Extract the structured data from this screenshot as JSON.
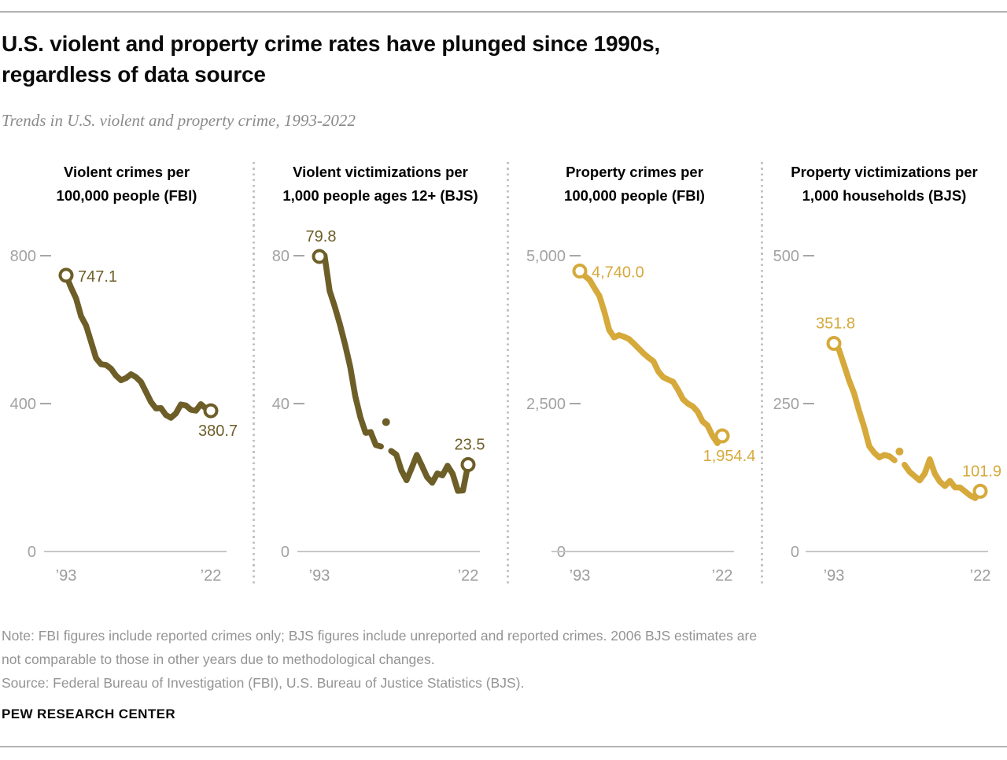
{
  "header": {
    "title_line1": "U.S. violent and property crime rates have plunged since 1990s,",
    "title_line2": "regardless of data source",
    "subtitle": "Trends in U.S. violent and property crime, 1993-2022"
  },
  "footer": {
    "note_line1": "Note: FBI figures include reported crimes only; BJS figures include unreported and reported crimes. 2006 BJS estimates are",
    "note_line2": "not comparable to those in other years due to methodological changes.",
    "source": "Source: Federal Bureau of Investigation (FBI), U.S. Bureau of Justice Statistics (BJS).",
    "brand": "PEW RESEARCH CENTER"
  },
  "colors": {
    "olive": "#6D5E28",
    "gold": "#D6A93B",
    "tick_text": "#a2a2a2",
    "x_text": "#9c9c9c",
    "dash": "#a6a6a6",
    "axis": "#c7c7c7"
  },
  "chart_data": [
    {
      "type": "line",
      "title_line1": "Violent crimes per",
      "title_line2": "100,000 people (FBI)",
      "color_key": "olive",
      "ylim": [
        0,
        800
      ],
      "yticks": [
        {
          "value": 800,
          "label": "800"
        },
        {
          "value": 400,
          "label": "400"
        },
        {
          "value": 0,
          "label": "0"
        }
      ],
      "xticks": [
        {
          "year": 1993,
          "label": "’93"
        },
        {
          "year": 2022,
          "label": "’22"
        }
      ],
      "years": [
        1993,
        1994,
        1995,
        1996,
        1997,
        1998,
        1999,
        2000,
        2001,
        2002,
        2003,
        2004,
        2005,
        2006,
        2007,
        2008,
        2009,
        2010,
        2011,
        2012,
        2013,
        2014,
        2015,
        2016,
        2017,
        2018,
        2019,
        2020,
        2021,
        2022
      ],
      "values": [
        747.1,
        713.6,
        684.5,
        636.6,
        611.0,
        567.6,
        523.0,
        506.5,
        504.5,
        494.4,
        475.8,
        463.2,
        469.0,
        479.3,
        471.8,
        458.6,
        431.9,
        404.5,
        387.1,
        387.8,
        369.1,
        361.6,
        373.7,
        397.5,
        394.9,
        383.4,
        380.8,
        398.5,
        387.0,
        380.7
      ],
      "gap_year": null,
      "end_marker_years": [
        1993,
        2022
      ],
      "annotations": [
        {
          "text": "747.1",
          "year": 1993,
          "pos": "right"
        },
        {
          "text": "380.7",
          "year": 2022,
          "pos": "below"
        }
      ]
    },
    {
      "type": "line",
      "title_line1": "Violent victimizations per",
      "title_line2": "1,000 people ages 12+ (BJS)",
      "color_key": "olive",
      "ylim": [
        0,
        80
      ],
      "yticks": [
        {
          "value": 80,
          "label": "80"
        },
        {
          "value": 40,
          "label": "40"
        },
        {
          "value": 0,
          "label": "0"
        }
      ],
      "xticks": [
        {
          "year": 1993,
          "label": "’93"
        },
        {
          "year": 2022,
          "label": "’22"
        }
      ],
      "years": [
        1993,
        1994,
        1995,
        1996,
        1997,
        1998,
        1999,
        2000,
        2001,
        2002,
        2003,
        2004,
        2005,
        2006,
        2007,
        2008,
        2009,
        2010,
        2011,
        2012,
        2013,
        2014,
        2015,
        2016,
        2017,
        2018,
        2019,
        2020,
        2021,
        2022
      ],
      "values": [
        79.8,
        80.1,
        70.5,
        66.2,
        61.4,
        56.0,
        50.0,
        42.0,
        36.3,
        32.1,
        32.3,
        28.8,
        28.4,
        35.0,
        27.2,
        26.2,
        21.9,
        19.3,
        22.6,
        26.1,
        23.2,
        20.1,
        18.6,
        21.1,
        20.6,
        23.2,
        21.0,
        16.4,
        16.5,
        23.5
      ],
      "gap_year": 2006,
      "end_marker_years": [
        1993,
        2022
      ],
      "annotations": [
        {
          "text": "79.8",
          "year": 1993,
          "pos": "above"
        },
        {
          "text": "23.5",
          "year": 2022,
          "pos": "above"
        }
      ]
    },
    {
      "type": "line",
      "title_line1": "Property crimes per",
      "title_line2": "100,000 people (FBI)",
      "color_key": "gold",
      "ylim": [
        0,
        5000
      ],
      "yticks": [
        {
          "value": 5000,
          "label": "5,000"
        },
        {
          "value": 2500,
          "label": "2,500"
        },
        {
          "value": 0,
          "label": "0"
        }
      ],
      "xticks": [
        {
          "year": 1993,
          "label": "’93"
        },
        {
          "year": 2022,
          "label": "’22"
        }
      ],
      "years": [
        1993,
        1994,
        1995,
        1996,
        1997,
        1998,
        1999,
        2000,
        2001,
        2002,
        2003,
        2004,
        2005,
        2006,
        2007,
        2008,
        2009,
        2010,
        2011,
        2012,
        2013,
        2014,
        2015,
        2016,
        2017,
        2018,
        2019,
        2020,
        2021,
        2022
      ],
      "values": [
        4740.0,
        4660.2,
        4590.5,
        4451.0,
        4316.3,
        4052.5,
        3743.6,
        3618.3,
        3658.1,
        3630.6,
        3591.2,
        3514.1,
        3431.5,
        3346.6,
        3276.4,
        3214.6,
        3041.3,
        2945.9,
        2905.4,
        2868.0,
        2733.6,
        2574.1,
        2500.5,
        2451.6,
        2362.9,
        2199.5,
        2130.6,
        1958.2,
        1832.3,
        1954.4
      ],
      "gap_year": null,
      "end_marker_years": [
        1993,
        2022
      ],
      "annotations": [
        {
          "text": "4,740.0",
          "year": 1993,
          "pos": "right"
        },
        {
          "text": "1,954.4",
          "year": 2022,
          "pos": "below"
        }
      ]
    },
    {
      "type": "line",
      "title_line1": "Property victimizations per",
      "title_line2": "1,000 households (BJS)",
      "color_key": "gold",
      "ylim": [
        0,
        500
      ],
      "yticks": [
        {
          "value": 500,
          "label": "500"
        },
        {
          "value": 250,
          "label": "250"
        },
        {
          "value": 0,
          "label": "0"
        }
      ],
      "xticks": [
        {
          "year": 1993,
          "label": "’93"
        },
        {
          "year": 2022,
          "label": "’22"
        }
      ],
      "years": [
        1993,
        1994,
        1995,
        1996,
        1997,
        1998,
        1999,
        2000,
        2001,
        2002,
        2003,
        2004,
        2005,
        2006,
        2007,
        2008,
        2009,
        2010,
        2011,
        2012,
        2013,
        2014,
        2015,
        2016,
        2017,
        2018,
        2019,
        2020,
        2021,
        2022
      ],
      "values": [
        351.8,
        341.2,
        315.5,
        289.3,
        267.1,
        237.0,
        210.0,
        178.1,
        166.9,
        159.0,
        163.2,
        161.1,
        154.2,
        169.0,
        146.5,
        134.7,
        127.4,
        120.2,
        131.8,
        155.8,
        131.4,
        118.1,
        110.7,
        119.4,
        108.4,
        108.2,
        101.4,
        94.5,
        90.3,
        101.9
      ],
      "gap_year": 2006,
      "end_marker_years": [
        1993,
        2022
      ],
      "annotations": [
        {
          "text": "351.8",
          "year": 1993,
          "pos": "above"
        },
        {
          "text": "101.9",
          "year": 2022,
          "pos": "above"
        }
      ]
    }
  ]
}
